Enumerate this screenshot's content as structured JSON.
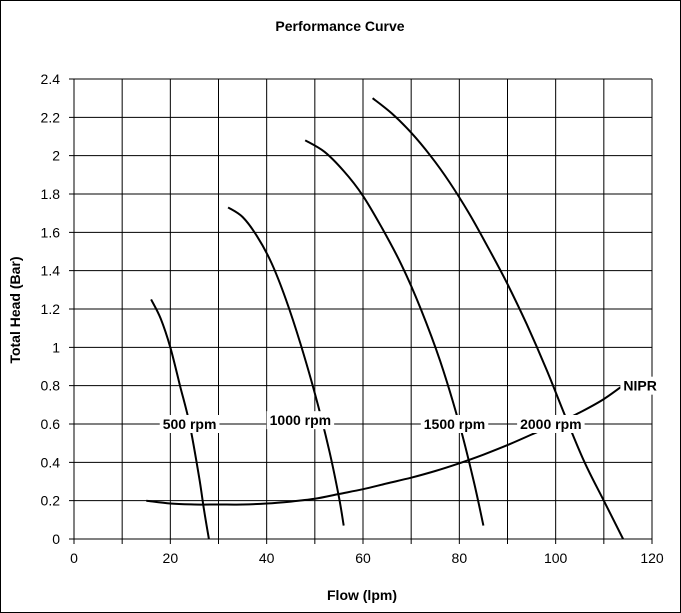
{
  "chart_data": {
    "type": "line",
    "title": "Performance Curve",
    "xlabel": "Flow (lpm)",
    "ylabel": "Total Head (Bar)",
    "xlim": [
      0,
      120
    ],
    "ylim": [
      0,
      2.4
    ],
    "xticks": [
      0,
      20,
      40,
      60,
      80,
      100,
      120
    ],
    "yticks": [
      0,
      0.2,
      0.4,
      0.6,
      0.8,
      1,
      1.2,
      1.4,
      1.6,
      1.8,
      2,
      2.2,
      2.4
    ],
    "grid": true,
    "series": [
      {
        "name": "500 rpm",
        "x": [
          16,
          18,
          20,
          22,
          24,
          26,
          27,
          28
        ],
        "y": [
          1.25,
          1.15,
          1.0,
          0.8,
          0.6,
          0.32,
          0.15,
          0.0
        ]
      },
      {
        "name": "1000 rpm",
        "x": [
          32,
          35,
          38,
          41,
          44,
          47,
          50,
          53,
          55,
          56
        ],
        "y": [
          1.73,
          1.68,
          1.58,
          1.44,
          1.25,
          1.02,
          0.76,
          0.46,
          0.22,
          0.07
        ]
      },
      {
        "name": "1500 rpm",
        "x": [
          48,
          52,
          56,
          60,
          64,
          68,
          72,
          76,
          80,
          83,
          85
        ],
        "y": [
          2.08,
          2.02,
          1.92,
          1.79,
          1.62,
          1.43,
          1.2,
          0.93,
          0.6,
          0.3,
          0.07
        ]
      },
      {
        "name": "2000 rpm",
        "x": [
          62,
          66,
          70,
          74,
          78,
          82,
          86,
          90,
          94,
          98,
          102,
          106,
          110,
          114
        ],
        "y": [
          2.3,
          2.22,
          2.12,
          2.0,
          1.86,
          1.7,
          1.52,
          1.33,
          1.12,
          0.89,
          0.64,
          0.4,
          0.2,
          0.0
        ]
      },
      {
        "name": "NIPR",
        "x": [
          15,
          20,
          25,
          30,
          35,
          40,
          45,
          50,
          55,
          60,
          65,
          70,
          75,
          80,
          85,
          90,
          95,
          100,
          105,
          110,
          115
        ],
        "y": [
          0.2,
          0.185,
          0.18,
          0.18,
          0.18,
          0.185,
          0.195,
          0.21,
          0.235,
          0.26,
          0.29,
          0.32,
          0.355,
          0.395,
          0.44,
          0.49,
          0.545,
          0.6,
          0.66,
          0.73,
          0.82
        ]
      }
    ],
    "curve_labels": [
      {
        "text": "500 rpm",
        "x": 24,
        "y": 0.6
      },
      {
        "text": "1000 rpm",
        "x": 47,
        "y": 0.62
      },
      {
        "text": "1500 rpm",
        "x": 79,
        "y": 0.6
      },
      {
        "text": "2000 rpm",
        "x": 99,
        "y": 0.6
      },
      {
        "text": "NIPR",
        "x": 121,
        "y": 0.8
      }
    ]
  }
}
